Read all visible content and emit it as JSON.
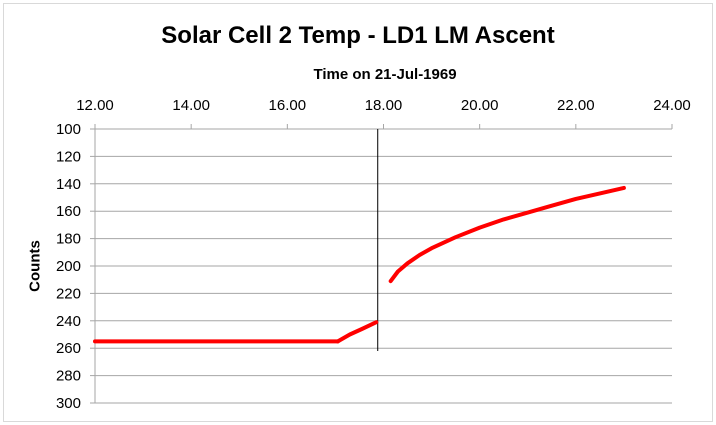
{
  "chart_data": {
    "type": "line",
    "title": "Solar Cell 2 Temp - LD1 LM Ascent",
    "xlabel": "Time on 21-Jul-1969",
    "ylabel": "Counts",
    "xlim": [
      12,
      24
    ],
    "ylim": [
      100,
      300
    ],
    "y_reversed": true,
    "x_axis_position": "top",
    "x_ticks": [
      "12.00",
      "14.00",
      "16.00",
      "18.00",
      "20.00",
      "22.00",
      "24.00"
    ],
    "y_ticks": [
      "100",
      "120",
      "140",
      "160",
      "180",
      "200",
      "220",
      "240",
      "260",
      "280",
      "300"
    ],
    "grid": "horizontal",
    "series_color": "#ff0000",
    "marker_line_color": "#000000",
    "vertical_marker_x": 17.88,
    "series": [
      {
        "segments": [
          {
            "x": [
              12.0,
              13.0,
              14.0,
              15.0,
              16.0,
              17.05
            ],
            "y": [
              255,
              255,
              255,
              255,
              255,
              255
            ]
          },
          {
            "x": [
              17.05,
              17.3,
              17.55,
              17.85
            ],
            "y": [
              255,
              250,
              246,
              241
            ]
          },
          {
            "x": [
              18.15,
              18.3,
              18.5,
              18.75,
              19.0,
              19.5,
              20.0,
              20.5,
              21.0,
              21.5,
              22.0,
              22.5,
              23.0
            ],
            "y": [
              211,
              204,
              198,
              192,
              187,
              179,
              172,
              166,
              161,
              156,
              151,
              147,
              143
            ]
          }
        ]
      }
    ]
  }
}
